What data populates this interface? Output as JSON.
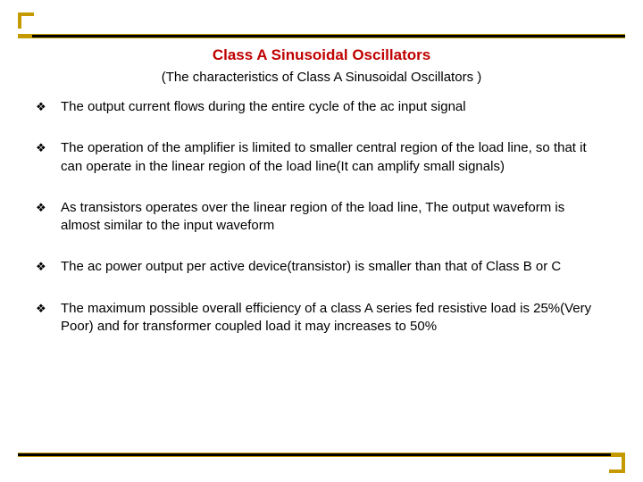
{
  "title": "Class A Sinusoidal Oscillators",
  "subtitle": "(The characteristics of Class A Sinusoidal Oscillators )",
  "bullet_glyph": "❖",
  "items": [
    "The output current flows during the entire cycle of the ac input signal",
    "The operation of the amplifier is limited to smaller central region of the load line, so that it can operate in the linear region of the load line(It can  amplify small signals)",
    "As transistors operates over the linear region of the load line, The output waveform is almost similar to the input waveform",
    "The ac power output per active device(transistor) is smaller than that of Class B or C",
    "The maximum possible overall efficiency of a class A series fed resistive load is 25%(Very Poor) and  for transformer coupled load it may increases to 50%"
  ],
  "colors": {
    "accent": "#c49a00",
    "rule_inner": "#000000",
    "title": "#c00000",
    "text": "#000000",
    "background": "#ffffff"
  }
}
